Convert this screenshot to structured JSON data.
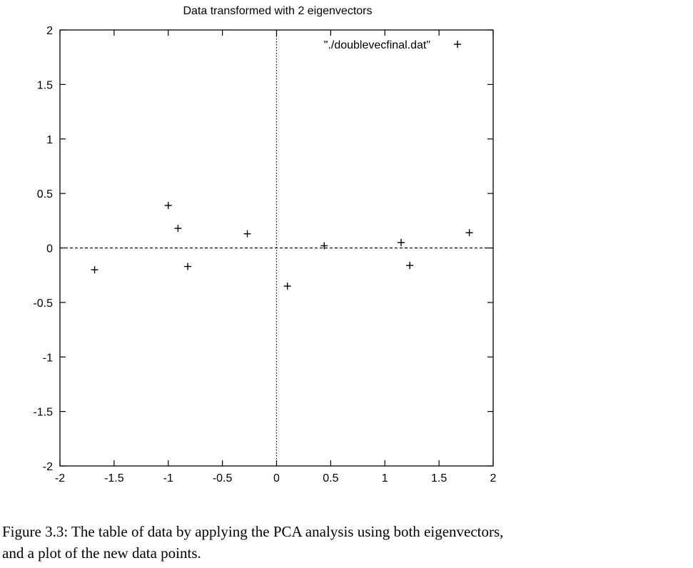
{
  "chart_data": {
    "type": "scatter",
    "title": "Data transformed with 2 eigenvectors",
    "xlabel": "",
    "ylabel": "",
    "xlim": [
      -2,
      2
    ],
    "ylim": [
      -2,
      2
    ],
    "grid": false,
    "zero_axes": true,
    "legend_position": "top-right",
    "marker": "+",
    "series": [
      {
        "name": "\"./doublevecfinal.dat\"",
        "points": [
          {
            "x": -1.68,
            "y": -0.2
          },
          {
            "x": -1.0,
            "y": 0.39
          },
          {
            "x": -0.91,
            "y": 0.18
          },
          {
            "x": -0.82,
            "y": -0.17
          },
          {
            "x": -0.27,
            "y": 0.13
          },
          {
            "x": 0.1,
            "y": -0.35
          },
          {
            "x": 0.44,
            "y": 0.02
          },
          {
            "x": 1.15,
            "y": 0.05
          },
          {
            "x": 1.23,
            "y": -0.16
          },
          {
            "x": 1.78,
            "y": 0.14
          }
        ]
      }
    ],
    "x_ticks": [
      {
        "value": -2,
        "label": "-2"
      },
      {
        "value": -1.5,
        "label": "-1.5"
      },
      {
        "value": -1,
        "label": "-1"
      },
      {
        "value": -0.5,
        "label": "-0.5"
      },
      {
        "value": 0,
        "label": "0"
      },
      {
        "value": 0.5,
        "label": "0.5"
      },
      {
        "value": 1,
        "label": "1"
      },
      {
        "value": 1.5,
        "label": "1.5"
      },
      {
        "value": 2,
        "label": "2"
      }
    ],
    "y_ticks": [
      {
        "value": 2,
        "label": "2"
      },
      {
        "value": 1.5,
        "label": "1.5"
      },
      {
        "value": 1,
        "label": "1"
      },
      {
        "value": 0.5,
        "label": "0.5"
      },
      {
        "value": 0,
        "label": "0"
      },
      {
        "value": -0.5,
        "label": "-0.5"
      },
      {
        "value": -1,
        "label": "-1"
      },
      {
        "value": -1.5,
        "label": "-1.5"
      },
      {
        "value": -2,
        "label": "-2"
      }
    ]
  },
  "caption": {
    "line1": "Figure 3.3:  The table of data by applying the PCA analysis using both eigenvectors,",
    "line2": "and a plot of the new data points."
  }
}
